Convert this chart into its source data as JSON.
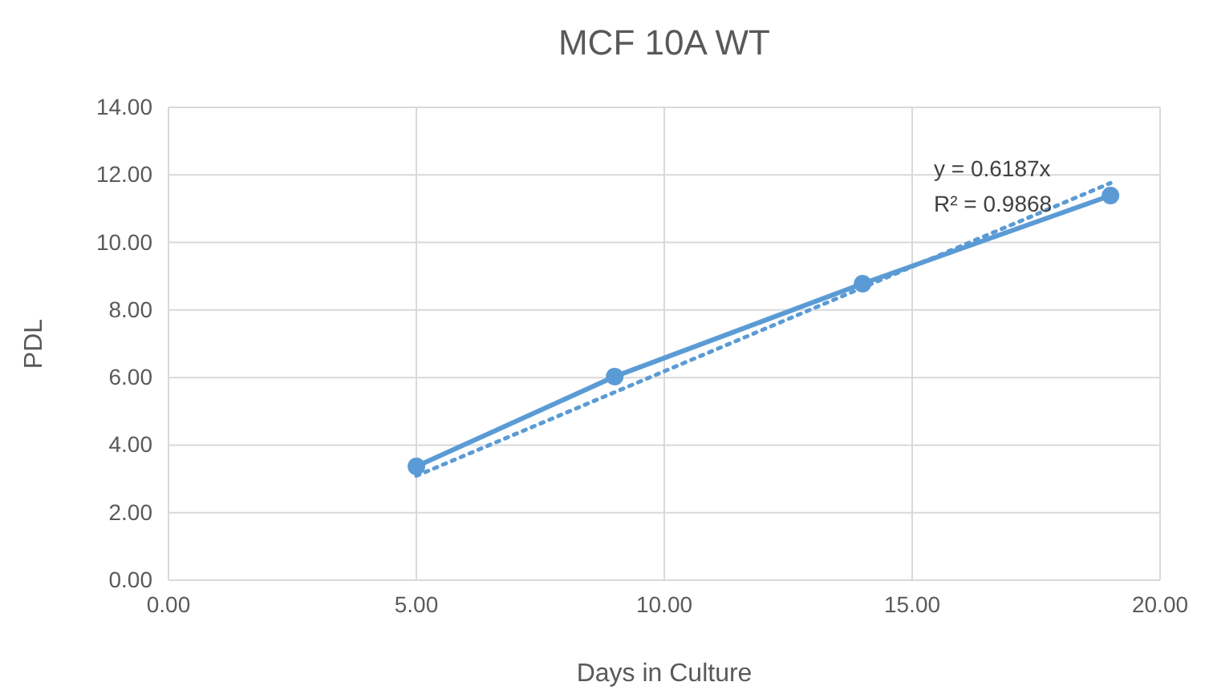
{
  "chart_data": {
    "type": "line",
    "title": "MCF 10A WT",
    "xlabel": "Days in Culture",
    "ylabel": "PDL",
    "xlim": [
      0,
      20
    ],
    "xticks": [
      {
        "value": 0,
        "label": "0.00"
      },
      {
        "value": 5,
        "label": "5.00"
      },
      {
        "value": 10,
        "label": "10.00"
      },
      {
        "value": 15,
        "label": "15.00"
      },
      {
        "value": 20,
        "label": "20.00"
      }
    ],
    "ylim": [
      0,
      14
    ],
    "yticks": [
      {
        "value": 0,
        "label": "0.00"
      },
      {
        "value": 2,
        "label": "2.00"
      },
      {
        "value": 4,
        "label": "4.00"
      },
      {
        "value": 6,
        "label": "6.00"
      },
      {
        "value": 8,
        "label": "8.00"
      },
      {
        "value": 10,
        "label": "10.00"
      },
      {
        "value": 12,
        "label": "12.00"
      },
      {
        "value": 14,
        "label": "14.00"
      }
    ],
    "grid": true,
    "series": [
      {
        "type": "line",
        "color": "#5b9bd5",
        "x": [
          5,
          9,
          14,
          19
        ],
        "values": [
          3.37,
          6.03,
          8.78,
          11.39
        ],
        "marker": "circle",
        "line_style": "solid"
      },
      {
        "type": "line",
        "color": "#5b9bd5",
        "x": [
          5,
          19
        ],
        "values": [
          3.09,
          11.76
        ],
        "marker": "none",
        "line_style": "dotted"
      }
    ],
    "annotations": [
      "y = 0.6187x",
      "R² = 0.9868"
    ]
  }
}
